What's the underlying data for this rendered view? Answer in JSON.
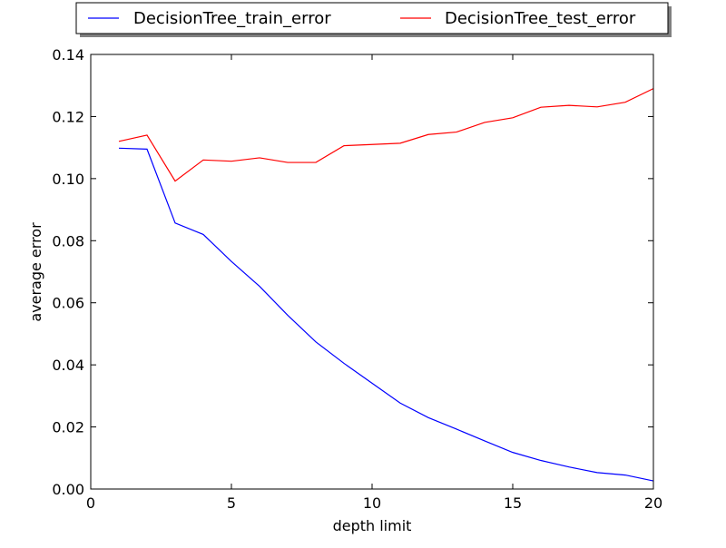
{
  "chart_data": {
    "type": "line",
    "title": "",
    "xlabel": "depth limit",
    "ylabel": "average error",
    "xlim": [
      0,
      20
    ],
    "ylim": [
      0.0,
      0.14
    ],
    "x_ticks": [
      0,
      5,
      10,
      15,
      20
    ],
    "x_tick_labels": [
      "0",
      "5",
      "10",
      "15",
      "20"
    ],
    "y_ticks": [
      0.0,
      0.02,
      0.04,
      0.06,
      0.08,
      0.1,
      0.12,
      0.14
    ],
    "y_tick_labels": [
      "0.00",
      "0.02",
      "0.04",
      "0.06",
      "0.08",
      "0.10",
      "0.12",
      "0.14"
    ],
    "grid": false,
    "legend_position": "top-center, outside plot",
    "x": [
      1,
      2,
      3,
      4,
      5,
      6,
      7,
      8,
      9,
      10,
      11,
      12,
      13,
      14,
      15,
      16,
      17,
      18,
      19,
      20
    ],
    "series": [
      {
        "name": "DecisionTree_train_error",
        "color": "#0000ff",
        "values": [
          0.1098,
          0.1095,
          0.0857,
          0.082,
          0.0733,
          0.0653,
          0.056,
          0.0474,
          0.0405,
          0.0341,
          0.0277,
          0.023,
          0.0193,
          0.0155,
          0.0118,
          0.0092,
          0.0071,
          0.0053,
          0.0045,
          0.0026
        ]
      },
      {
        "name": "DecisionTree_test_error",
        "color": "#ff0000",
        "values": [
          0.112,
          0.114,
          0.0992,
          0.106,
          0.1056,
          0.1067,
          0.1052,
          0.1052,
          0.1106,
          0.111,
          0.1114,
          0.1142,
          0.115,
          0.1181,
          0.1196,
          0.123,
          0.1236,
          0.1231,
          0.1246,
          0.129
        ]
      }
    ]
  }
}
